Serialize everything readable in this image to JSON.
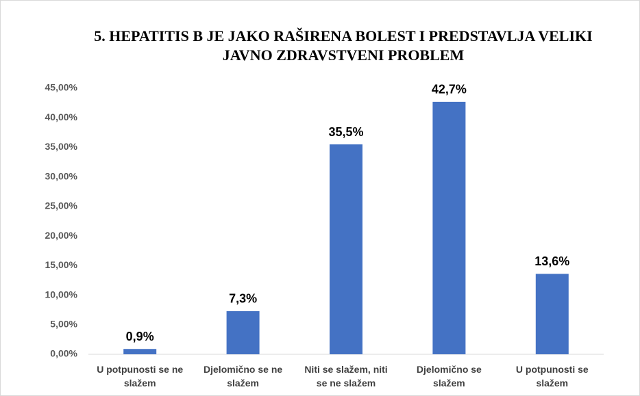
{
  "chart_data": {
    "type": "bar",
    "title": "5. HEPATITIS B JE JAKO RAŠIRENA BOLEST I PREDSTAVLJA VELIKI JAVNO ZDRAVSTVENI PROBLEM",
    "categories": [
      "U potpunosti se ne slažem",
      "Djelomično se ne slažem",
      "Niti se slažem, niti se ne slažem",
      "Djelomično se slažem",
      "U potpunosti se slažem"
    ],
    "values": [
      0.9,
      7.3,
      35.5,
      42.7,
      13.6
    ],
    "value_labels": [
      "0,9%",
      "7,3%",
      "35,5%",
      "42,7%",
      "13,6%"
    ],
    "color": "#4472c4",
    "ylim": [
      0,
      45
    ],
    "yticks": [
      {
        "value": 0,
        "label": "0,00%"
      },
      {
        "value": 5,
        "label": "5,00%"
      },
      {
        "value": 10,
        "label": "10,00%"
      },
      {
        "value": 15,
        "label": "15,00%"
      },
      {
        "value": 20,
        "label": "20,00%"
      },
      {
        "value": 25,
        "label": "25,00%"
      },
      {
        "value": 30,
        "label": "30,00%"
      },
      {
        "value": 35,
        "label": "35,00%"
      },
      {
        "value": 40,
        "label": "40,00%"
      },
      {
        "value": 45,
        "label": "45,00%"
      }
    ],
    "grid": false
  }
}
